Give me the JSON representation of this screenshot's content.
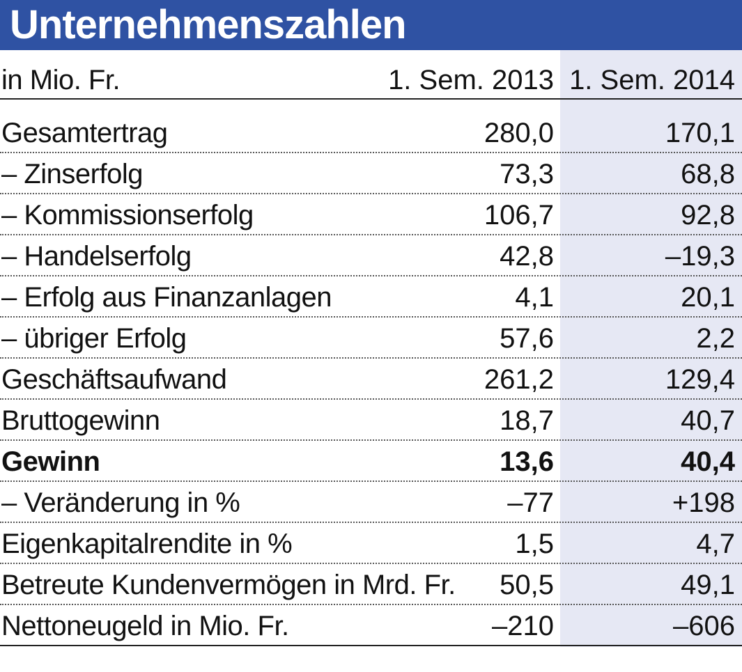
{
  "chart_data": {
    "type": "table",
    "title": "Unternehmenszahlen",
    "header": {
      "unit_label": "in Mio. Fr.",
      "columns": [
        "1. Sem. 2013",
        "1. Sem. 2014"
      ]
    },
    "rows": [
      {
        "label": "Gesamtertrag",
        "v2013": "280,0",
        "v2014": "170,1",
        "bold": false
      },
      {
        "label": "– Zinserfolg",
        "v2013": "73,3",
        "v2014": "68,8",
        "bold": false
      },
      {
        "label": "– Kommissionserfolg",
        "v2013": "106,7",
        "v2014": "92,8",
        "bold": false
      },
      {
        "label": "– Handelserfolg",
        "v2013": "42,8",
        "v2014": "–19,3",
        "bold": false
      },
      {
        "label": "– Erfolg aus Finanzanlagen",
        "v2013": "4,1",
        "v2014": "20,1",
        "bold": false
      },
      {
        "label": "– übriger Erfolg",
        "v2013": "57,6",
        "v2014": "2,2",
        "bold": false
      },
      {
        "label": "Geschäftsaufwand",
        "v2013": "261,2",
        "v2014": "129,4",
        "bold": false
      },
      {
        "label": "Bruttogewinn",
        "v2013": "18,7",
        "v2014": "40,7",
        "bold": false
      },
      {
        "label": "Gewinn",
        "v2013": "13,6",
        "v2014": "40,4",
        "bold": true
      },
      {
        "label": "– Veränderung in %",
        "v2013": "–77",
        "v2014": "+198",
        "bold": false
      },
      {
        "label": "Eigenkapitalrendite in %",
        "v2013": "1,5",
        "v2014": "4,7",
        "bold": false
      },
      {
        "label": "Betreute Kundenvermögen in Mrd. Fr.",
        "v2013": "50,5",
        "v2014": "49,1",
        "bold": false
      },
      {
        "label": "Nettoneugeld in Mio. Fr.",
        "v2013": "–210",
        "v2014": "–606",
        "bold": false
      }
    ]
  },
  "colors": {
    "title_bar": "#2f52a3",
    "title_text": "#ffffff",
    "highlight_column": "#e6e8f4"
  }
}
